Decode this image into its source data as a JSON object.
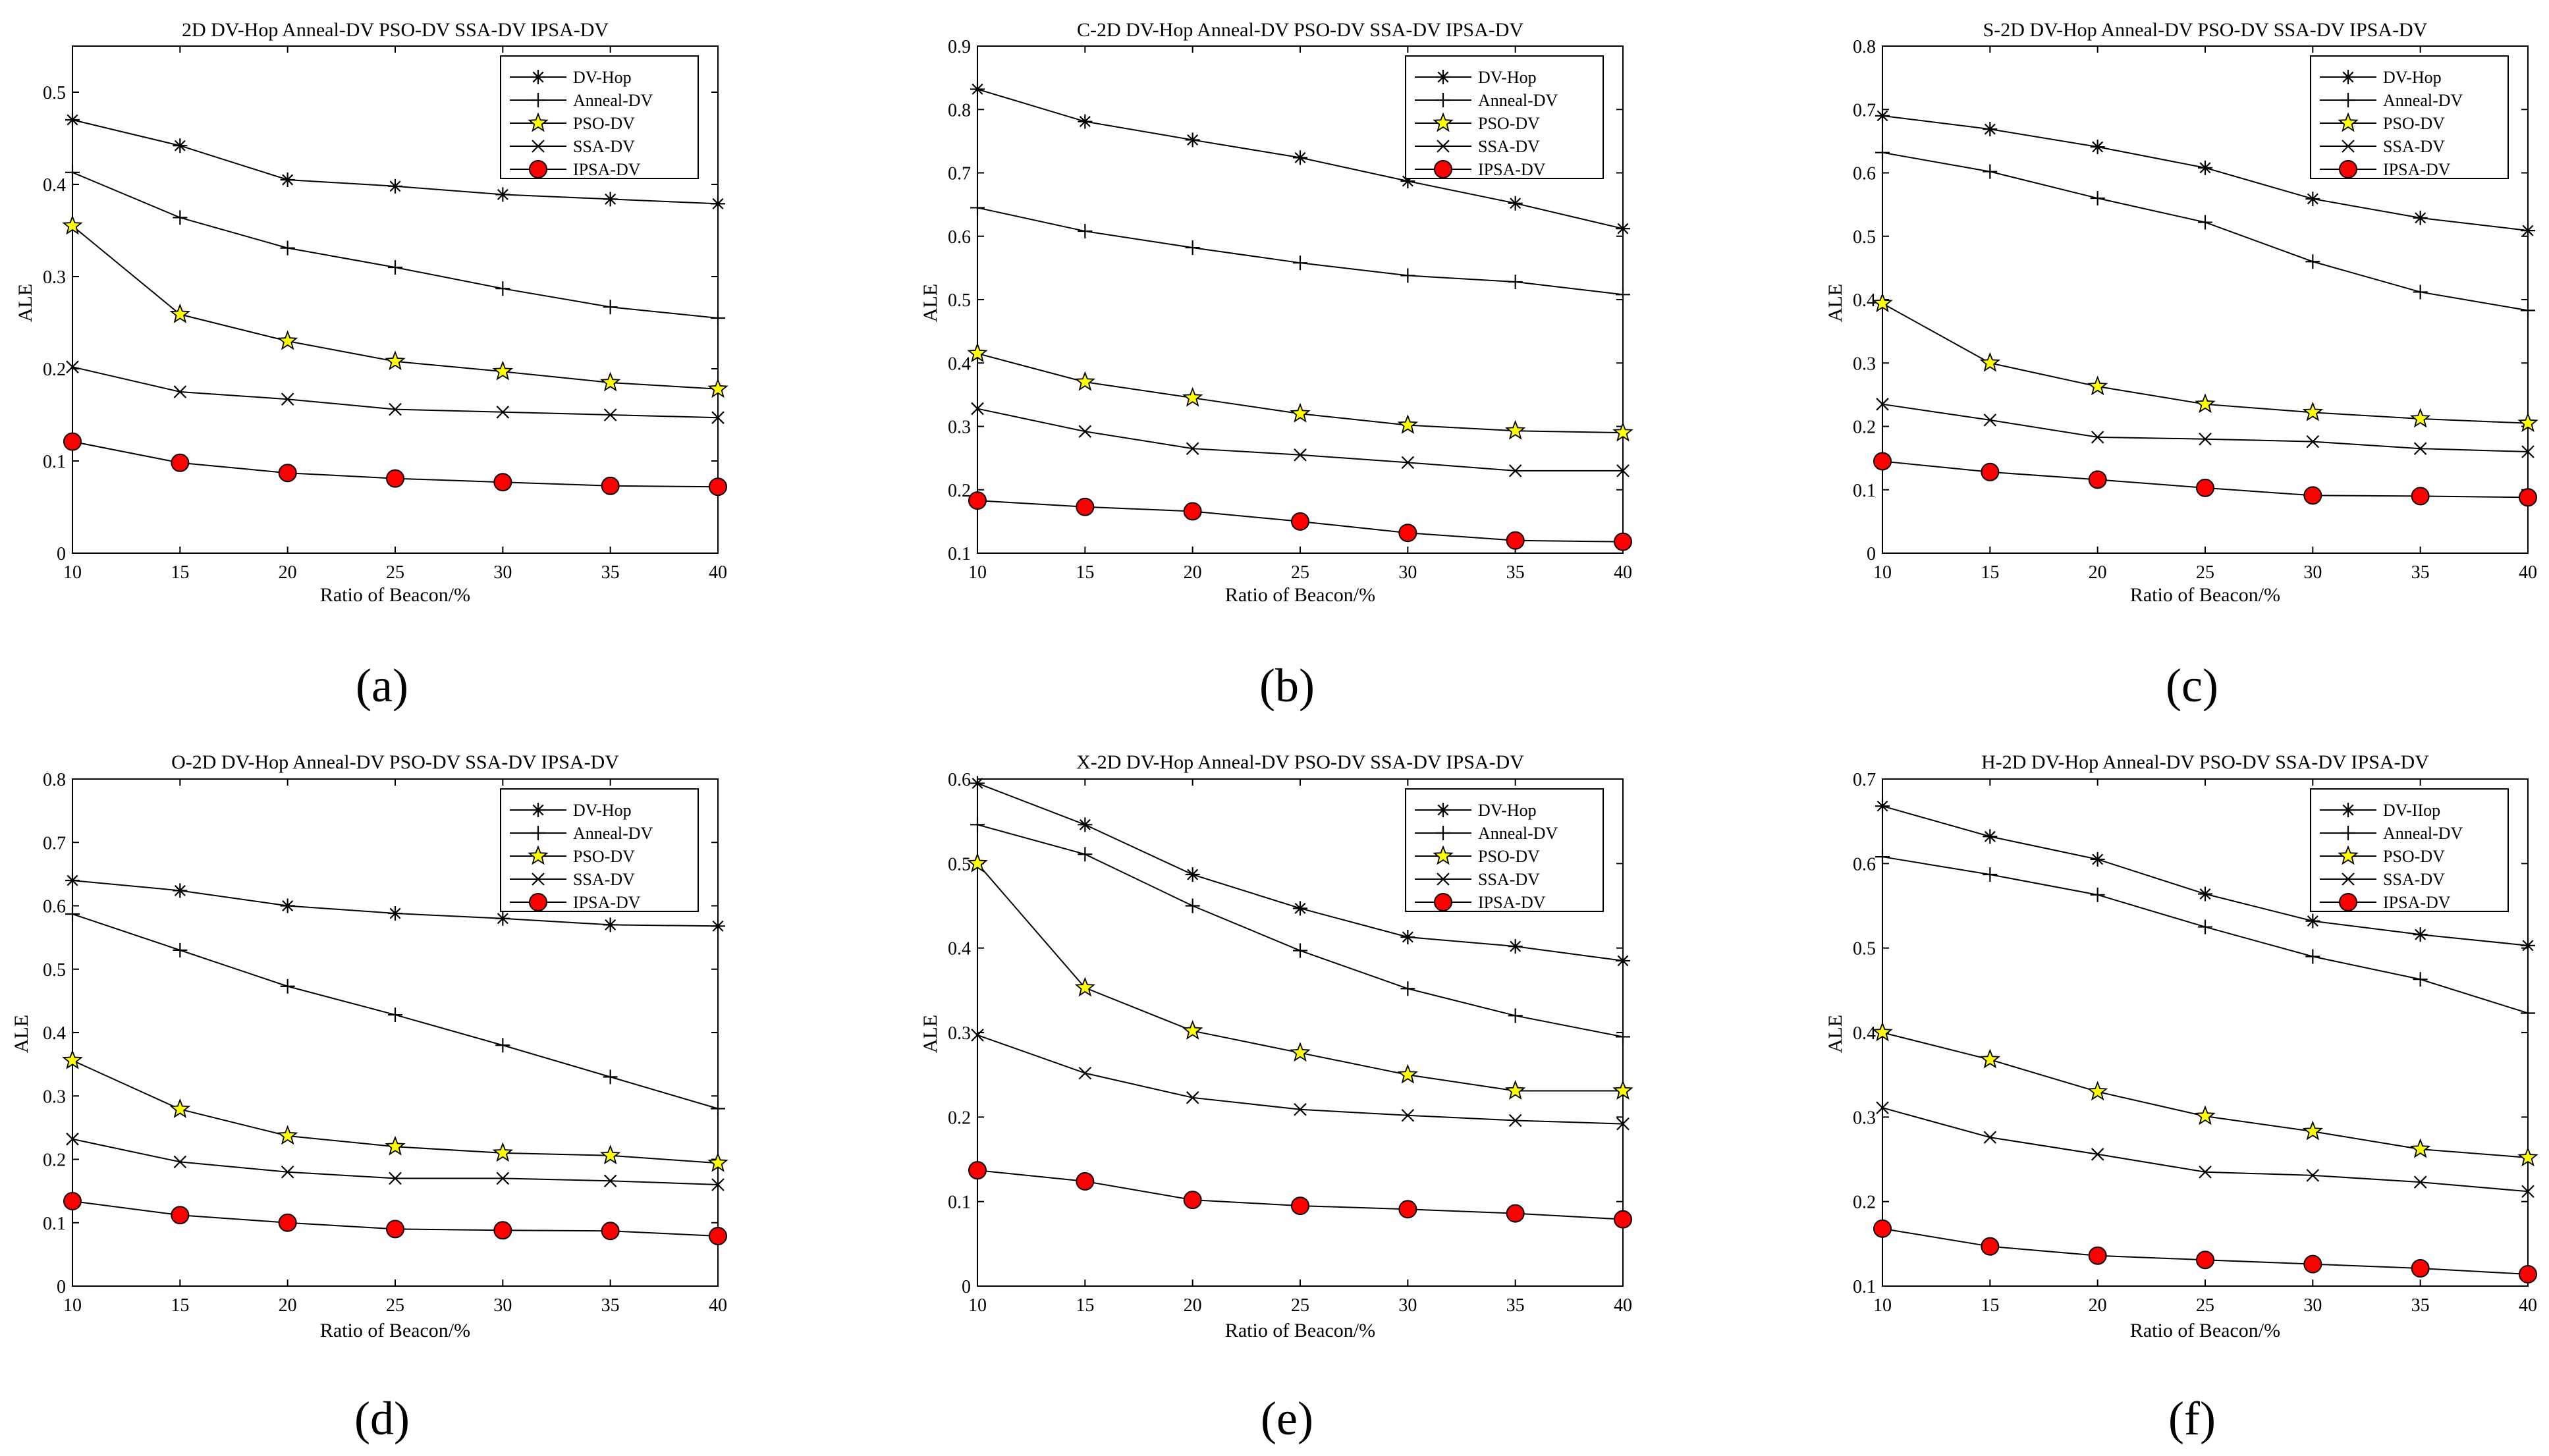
{
  "figure": {
    "charts": [
      {
        "title": "2D DV-Hop Anneal-DV PSO-DV SSA-DV IPSA-DV",
        "panel_label": "(a)",
        "xlabel": "Ratio of Beacon/%",
        "ylabel": "ALE",
        "legend_location": "top-right"
      },
      {
        "title": "C-2D DV-Hop Anneal-DV PSO-DV SSA-DV IPSA-DV",
        "panel_label": "(b)",
        "xlabel": "Ratio of Beacon/%",
        "ylabel": "ALE",
        "legend_location": "top-right"
      },
      {
        "title": "S-2D DV-Hop Anneal-DV PSO-DV SSA-DV IPSA-DV",
        "panel_label": "(c)",
        "xlabel": "Ratio of Beacon/%",
        "ylabel": "ALE",
        "legend_location": "top-right"
      },
      {
        "title": "O-2D DV-Hop Anneal-DV PSO-DV SSA-DV IPSA-DV",
        "panel_label": "(d)",
        "xlabel": "Ratio of Beacon/%",
        "ylabel": "ALE",
        "legend_location": "top-right"
      },
      {
        "title": "X-2D DV-Hop Anneal-DV PSO-DV SSA-DV IPSA-DV",
        "panel_label": "(e)",
        "xlabel": "Ratio of Beacon/%",
        "ylabel": "ALE",
        "legend_location": "top-right"
      },
      {
        "title": "H-2D DV-Hop Anneal-DV PSO-DV SSA-DV IPSA-DV",
        "panel_label": "(f)",
        "xlabel": "Ratio of Beacon/%",
        "ylabel": "ALE",
        "legend_location": "top-right"
      }
    ]
  },
  "colors": {
    "line": "#000000",
    "pso_marker": "#ffff00",
    "ipsa_marker": "#ff0000",
    "background": "#ffffff"
  },
  "chart_data": [
    {
      "type": "line",
      "title": "2D DV-Hop Anneal-DV PSO-DV SSA-DV IPSA-DV",
      "xlabel": "Ratio of Beacon/%",
      "ylabel": "ALE",
      "x": [
        10,
        15,
        20,
        25,
        30,
        35,
        40
      ],
      "xlim": [
        10,
        40
      ],
      "ylim": [
        0,
        0.55
      ],
      "yticks": [
        0,
        0.1,
        0.2,
        0.3,
        0.4,
        0.5
      ],
      "ytick_labels": [
        "0",
        "0.1",
        "0.2",
        "0.3",
        "0.4",
        "0.5"
      ],
      "series": [
        {
          "name": "DV-Hop",
          "marker": "asterisk",
          "values": [
            0.47,
            0.442,
            0.405,
            0.398,
            0.389,
            0.384,
            0.379
          ]
        },
        {
          "name": "Anneal-DV",
          "marker": "plus",
          "values": [
            0.413,
            0.364,
            0.331,
            0.31,
            0.287,
            0.267,
            0.255
          ]
        },
        {
          "name": "PSO-DV",
          "marker": "star",
          "values": [
            0.355,
            0.259,
            0.23,
            0.208,
            0.197,
            0.185,
            0.178
          ]
        },
        {
          "name": "SSA-DV",
          "marker": "x",
          "values": [
            0.202,
            0.175,
            0.167,
            0.156,
            0.153,
            0.15,
            0.147
          ]
        },
        {
          "name": "IPSA-DV",
          "marker": "circle",
          "values": [
            0.121,
            0.098,
            0.087,
            0.081,
            0.077,
            0.073,
            0.072
          ]
        }
      ]
    },
    {
      "type": "line",
      "title": "C-2D DV-Hop Anneal-DV PSO-DV SSA-DV IPSA-DV",
      "xlabel": "Ratio of Beacon/%",
      "ylabel": "ALE",
      "x": [
        10,
        15,
        20,
        25,
        30,
        35,
        40
      ],
      "xlim": [
        10,
        40
      ],
      "ylim": [
        0.1,
        0.9
      ],
      "yticks": [
        0.1,
        0.2,
        0.3,
        0.4,
        0.5,
        0.6,
        0.7,
        0.8,
        0.9
      ],
      "ytick_labels": [
        "0.1",
        "0.2",
        "0.3",
        "0.4",
        "0.5",
        "0.6",
        "0.7",
        "0.8",
        "0.9"
      ],
      "series": [
        {
          "name": "DV-Hop",
          "marker": "asterisk",
          "values": [
            0.832,
            0.781,
            0.752,
            0.724,
            0.687,
            0.652,
            0.612
          ]
        },
        {
          "name": "Anneal-DV",
          "marker": "plus",
          "values": [
            0.645,
            0.608,
            0.582,
            0.558,
            0.538,
            0.528,
            0.508
          ]
        },
        {
          "name": "PSO-DV",
          "marker": "star",
          "values": [
            0.415,
            0.37,
            0.345,
            0.32,
            0.302,
            0.293,
            0.29
          ]
        },
        {
          "name": "SSA-DV",
          "marker": "x",
          "values": [
            0.328,
            0.292,
            0.265,
            0.255,
            0.243,
            0.23,
            0.23
          ]
        },
        {
          "name": "IPSA-DV",
          "marker": "circle",
          "values": [
            0.183,
            0.173,
            0.166,
            0.15,
            0.132,
            0.12,
            0.118
          ]
        }
      ]
    },
    {
      "type": "line",
      "title": "S-2D DV-Hop Anneal-DV PSO-DV SSA-DV IPSA-DV",
      "xlabel": "Ratio of Beacon/%",
      "ylabel": "ALE",
      "x": [
        10,
        15,
        20,
        25,
        30,
        35,
        40
      ],
      "xlim": [
        10,
        40
      ],
      "ylim": [
        0,
        0.8
      ],
      "yticks": [
        0,
        0.1,
        0.2,
        0.3,
        0.4,
        0.5,
        0.6,
        0.7,
        0.8
      ],
      "ytick_labels": [
        "0",
        "0.1",
        "0.2",
        "0.3",
        "0.4",
        "0.5",
        "0.6",
        "0.7",
        "0.8"
      ],
      "series": [
        {
          "name": "DV-Hop",
          "marker": "asterisk",
          "values": [
            0.69,
            0.669,
            0.641,
            0.608,
            0.559,
            0.529,
            0.509
          ]
        },
        {
          "name": "Anneal-DV",
          "marker": "plus",
          "values": [
            0.632,
            0.602,
            0.56,
            0.522,
            0.46,
            0.412,
            0.383
          ]
        },
        {
          "name": "PSO-DV",
          "marker": "star",
          "values": [
            0.394,
            0.3,
            0.263,
            0.235,
            0.222,
            0.212,
            0.205
          ]
        },
        {
          "name": "SSA-DV",
          "marker": "x",
          "values": [
            0.235,
            0.21,
            0.183,
            0.18,
            0.176,
            0.165,
            0.16
          ]
        },
        {
          "name": "IPSA-DV",
          "marker": "circle",
          "values": [
            0.145,
            0.128,
            0.116,
            0.103,
            0.091,
            0.09,
            0.088
          ]
        }
      ]
    },
    {
      "type": "line",
      "title": "O-2D DV-Hop Anneal-DV PSO-DV SSA-DV IPSA-DV",
      "xlabel": "Ratio of Beacon/%",
      "ylabel": "ALE",
      "x": [
        10,
        15,
        20,
        25,
        30,
        35,
        40
      ],
      "xlim": [
        10,
        40
      ],
      "ylim": [
        0,
        0.8
      ],
      "yticks": [
        0,
        0.1,
        0.2,
        0.3,
        0.4,
        0.5,
        0.6,
        0.7,
        0.8
      ],
      "ytick_labels": [
        "0",
        "0.1",
        "0.2",
        "0.3",
        "0.4",
        "0.5",
        "0.6",
        "0.7",
        "0.8"
      ],
      "series": [
        {
          "name": "DV-Hop",
          "marker": "asterisk",
          "values": [
            0.64,
            0.624,
            0.6,
            0.588,
            0.58,
            0.57,
            0.568
          ]
        },
        {
          "name": "Anneal-DV",
          "marker": "plus",
          "values": [
            0.587,
            0.53,
            0.473,
            0.428,
            0.38,
            0.33,
            0.28
          ]
        },
        {
          "name": "PSO-DV",
          "marker": "star",
          "values": [
            0.356,
            0.279,
            0.237,
            0.22,
            0.21,
            0.206,
            0.194
          ]
        },
        {
          "name": "SSA-DV",
          "marker": "x",
          "values": [
            0.232,
            0.196,
            0.18,
            0.17,
            0.17,
            0.166,
            0.16
          ]
        },
        {
          "name": "IPSA-DV",
          "marker": "circle",
          "values": [
            0.134,
            0.112,
            0.1,
            0.09,
            0.088,
            0.087,
            0.079
          ]
        }
      ]
    },
    {
      "type": "line",
      "title": "X-2D DV-Hop Anneal-DV PSO-DV SSA-DV IPSA-DV",
      "xlabel": "Ratio of Beacon/%",
      "ylabel": "ALE",
      "x": [
        10,
        15,
        20,
        25,
        30,
        35,
        40
      ],
      "xlim": [
        10,
        40
      ],
      "ylim": [
        0,
        0.6
      ],
      "yticks": [
        0,
        0.1,
        0.2,
        0.3,
        0.4,
        0.5,
        0.6
      ],
      "ytick_labels": [
        "0",
        "0.1",
        "0.2",
        "0.3",
        "0.4",
        "0.5",
        "0.6"
      ],
      "series": [
        {
          "name": "DV-Hop",
          "marker": "asterisk",
          "values": [
            0.595,
            0.546,
            0.487,
            0.447,
            0.413,
            0.402,
            0.385
          ]
        },
        {
          "name": "Anneal-DV",
          "marker": "plus",
          "values": [
            0.546,
            0.511,
            0.45,
            0.397,
            0.352,
            0.32,
            0.295
          ]
        },
        {
          "name": "PSO-DV",
          "marker": "star",
          "values": [
            0.5,
            0.353,
            0.302,
            0.276,
            0.25,
            0.231,
            0.231
          ]
        },
        {
          "name": "SSA-DV",
          "marker": "x",
          "values": [
            0.297,
            0.252,
            0.223,
            0.209,
            0.202,
            0.196,
            0.192
          ]
        },
        {
          "name": "IPSA-DV",
          "marker": "circle",
          "values": [
            0.137,
            0.124,
            0.102,
            0.095,
            0.091,
            0.086,
            0.079
          ]
        }
      ]
    },
    {
      "type": "line",
      "title": "H-2D DV-Hop Anneal-DV PSO-DV SSA-DV IPSA-DV",
      "xlabel": "Ratio of Beacon/%",
      "ylabel": "ALE",
      "x": [
        10,
        15,
        20,
        25,
        30,
        35,
        40
      ],
      "xlim": [
        10,
        40
      ],
      "ylim": [
        0.1,
        0.7
      ],
      "yticks": [
        0.1,
        0.2,
        0.3,
        0.4,
        0.5,
        0.6,
        0.7
      ],
      "ytick_labels": [
        "0.1",
        "0.2",
        "0.3",
        "0.4",
        "0.5",
        "0.6",
        "0.7"
      ],
      "series": [
        {
          "name": "DV-IIop",
          "marker": "asterisk",
          "values": [
            0.668,
            0.632,
            0.605,
            0.564,
            0.532,
            0.516,
            0.503
          ]
        },
        {
          "name": "Anneal-DV",
          "marker": "plus",
          "values": [
            0.608,
            0.587,
            0.563,
            0.525,
            0.49,
            0.463,
            0.423
          ]
        },
        {
          "name": "PSO-DV",
          "marker": "star",
          "values": [
            0.4,
            0.368,
            0.33,
            0.301,
            0.283,
            0.262,
            0.252
          ]
        },
        {
          "name": "SSA-DV",
          "marker": "x",
          "values": [
            0.311,
            0.276,
            0.256,
            0.235,
            0.231,
            0.223,
            0.212
          ]
        },
        {
          "name": "IPSA-DV",
          "marker": "circle",
          "values": [
            0.168,
            0.147,
            0.136,
            0.131,
            0.126,
            0.121,
            0.114
          ]
        }
      ]
    }
  ]
}
